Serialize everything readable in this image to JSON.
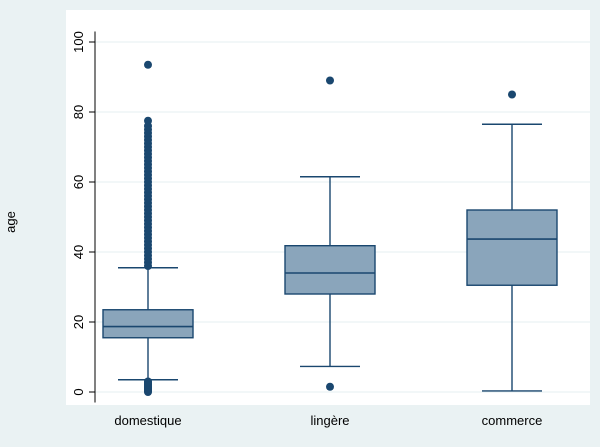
{
  "colors": {
    "outer_background": "#eaf2f3",
    "plot_background": "#ffffff",
    "gridline": "#eaf2f3",
    "box_fill": "#8aa5bb",
    "box_stroke": "#1a476f",
    "outlier": "#1a476f",
    "axis": "#000000"
  },
  "chart_data": {
    "type": "box",
    "title": "",
    "xlabel": "",
    "ylabel": "age",
    "ylim": [
      -3,
      103
    ],
    "yticks": [
      0,
      20,
      40,
      60,
      80,
      100
    ],
    "ytick_labels": [
      "0",
      "20",
      "40",
      "60",
      "80",
      "100"
    ],
    "grid": true,
    "categories": [
      "domestique",
      "lingère",
      "commerce"
    ],
    "boxes": [
      {
        "category": "domestique",
        "whisker_low": 3.5,
        "q1": 15.5,
        "median": 18.7,
        "q3": 23.5,
        "whisker_high": 35.5,
        "outliers": [
          0,
          0.3,
          0.6,
          0.9,
          1.2,
          1.5,
          1.8,
          2.1,
          2.4,
          2.7,
          3.0,
          36,
          37,
          38,
          39,
          40,
          41,
          42,
          43,
          44,
          45,
          46,
          47,
          48,
          49,
          50,
          51,
          52,
          53,
          54,
          55,
          56,
          57,
          58,
          59,
          60,
          61,
          62,
          63,
          64,
          65,
          66,
          67,
          68,
          69,
          70,
          71,
          72,
          73,
          74,
          75,
          76,
          77.5,
          93.5
        ]
      },
      {
        "category": "lingère",
        "whisker_low": 7.3,
        "q1": 28,
        "median": 34,
        "q3": 41.8,
        "whisker_high": 61.5,
        "outliers": [
          1.5,
          89
        ]
      },
      {
        "category": "commerce",
        "whisker_low": 0.3,
        "q1": 30.5,
        "median": 43.7,
        "q3": 52,
        "whisker_high": 76.5,
        "outliers": [
          85
        ]
      }
    ]
  }
}
